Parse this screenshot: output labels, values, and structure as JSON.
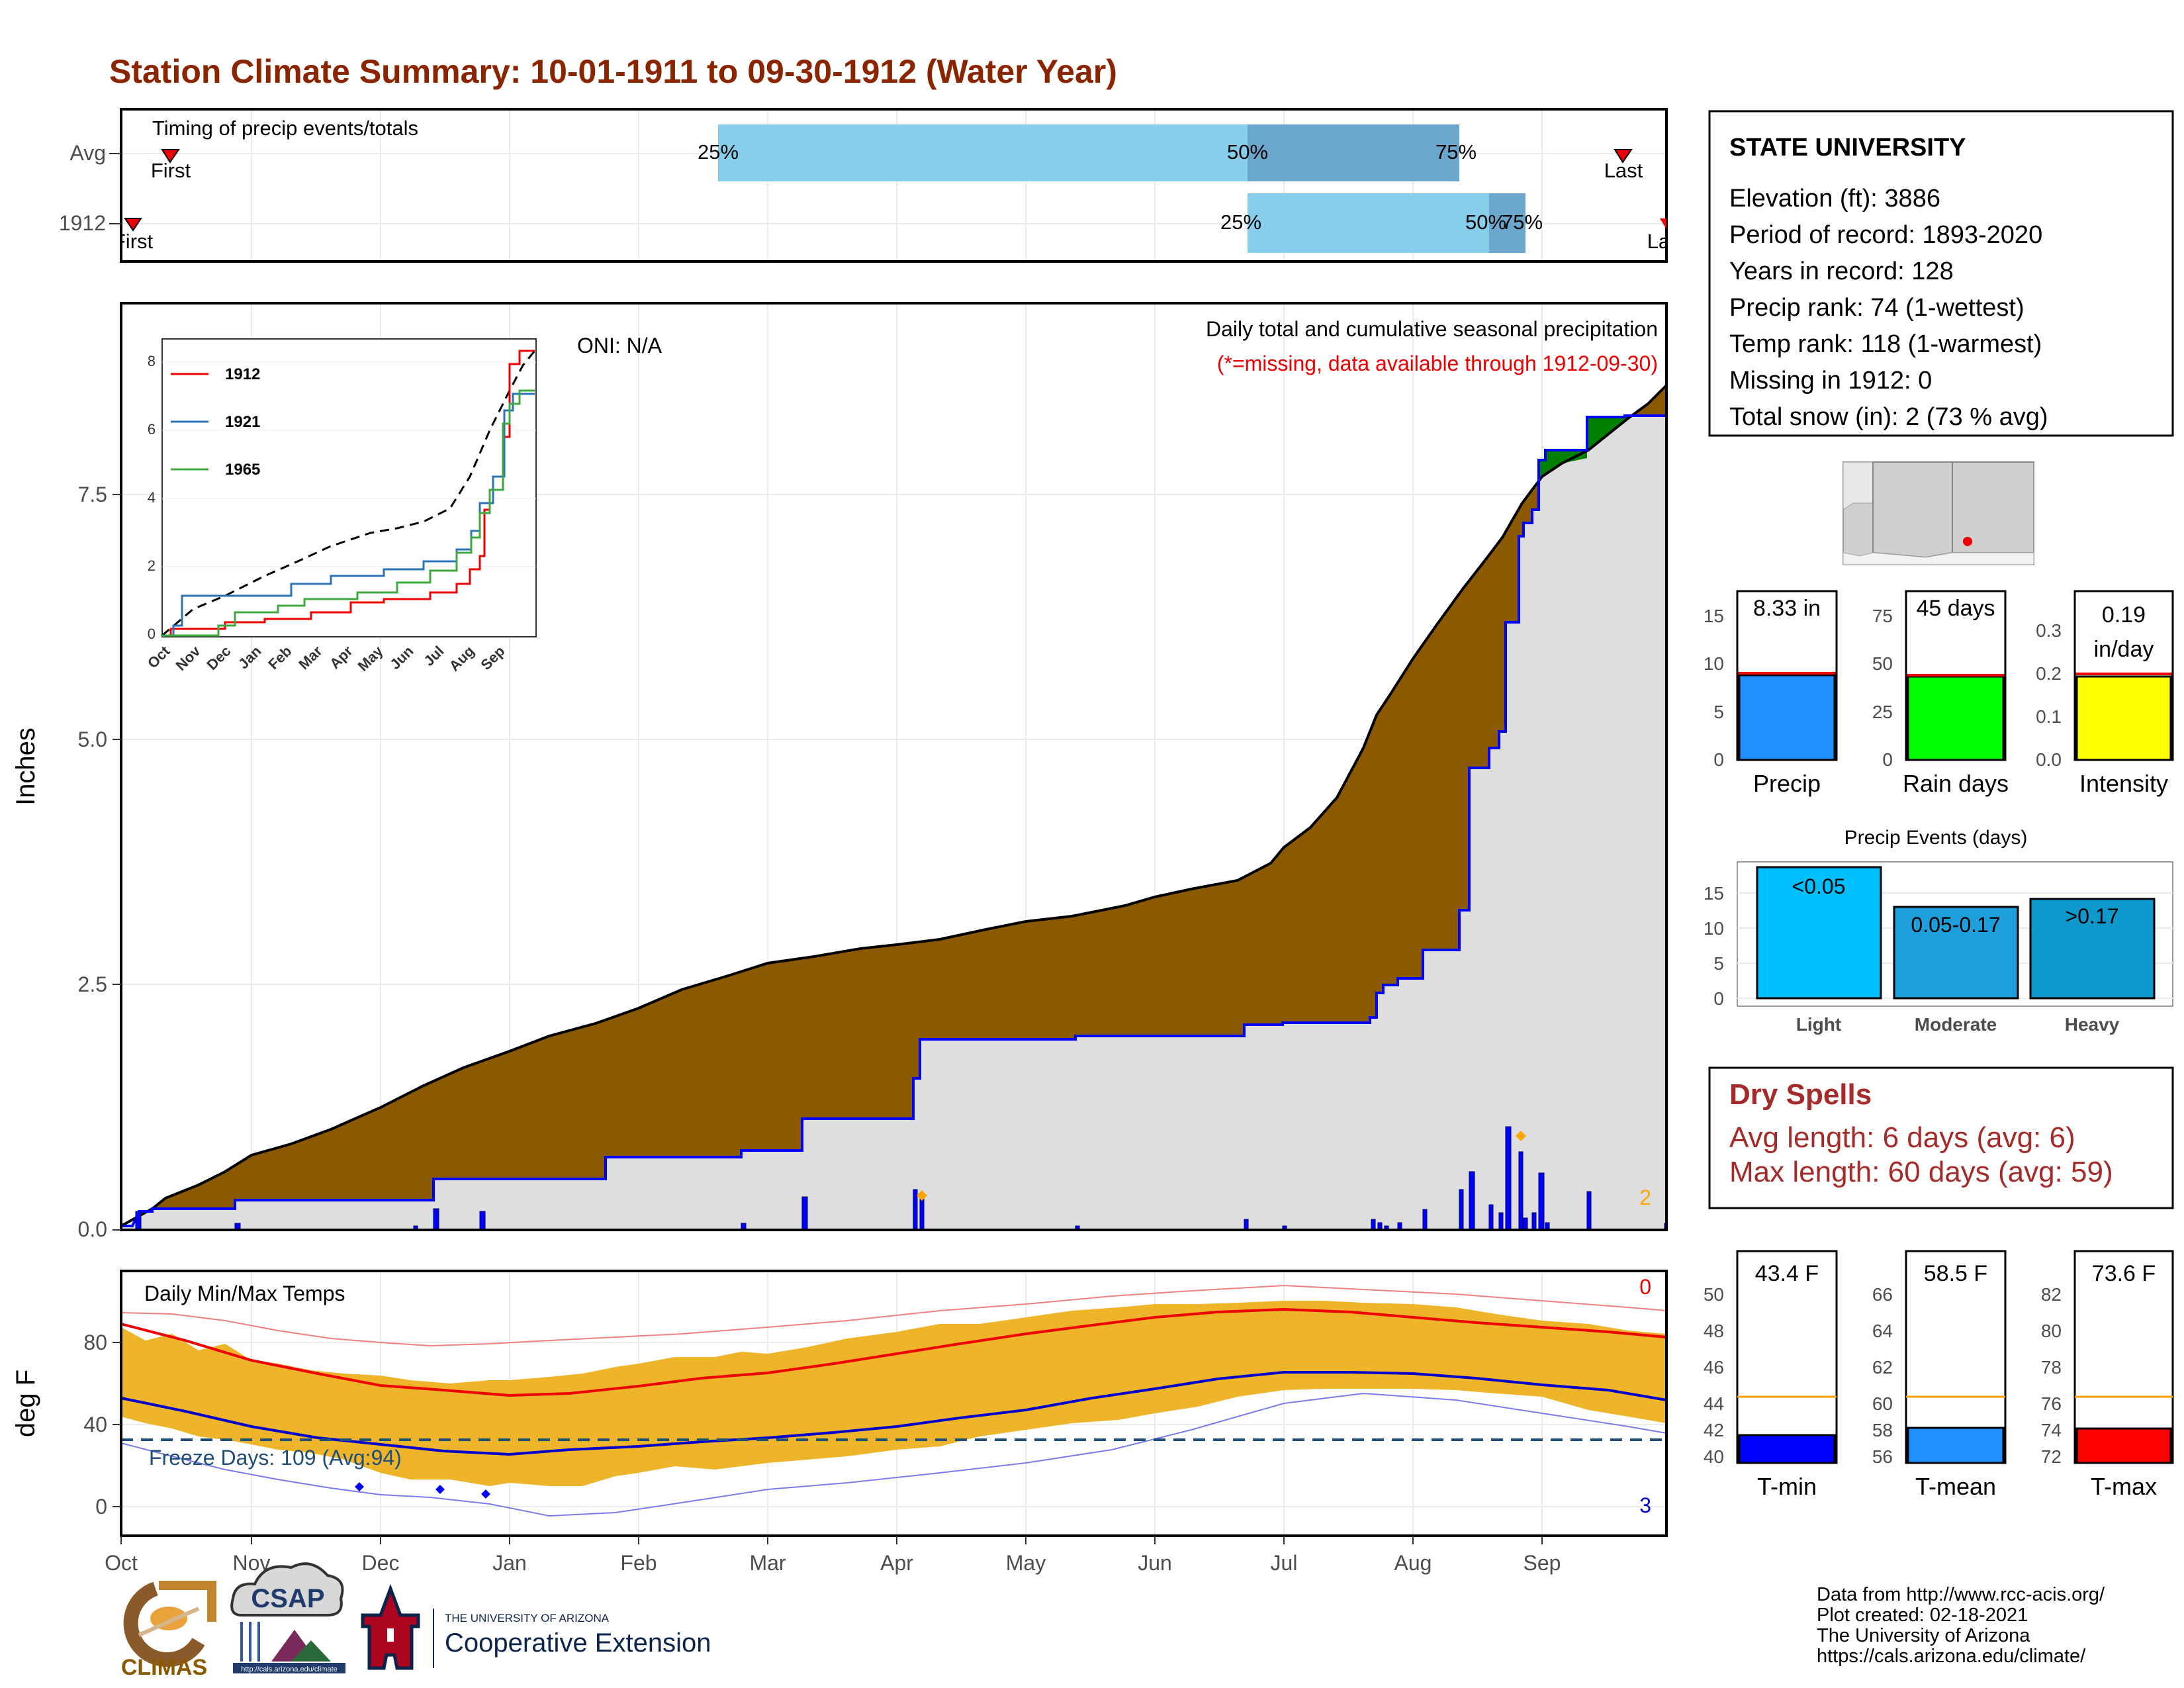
{
  "title": "Station Climate Summary: 10-01-1911 to 09-30-1912 (Water Year)",
  "timing": {
    "label": "Timing of precip events/totals",
    "rows": [
      {
        "name": "Avg",
        "first_label": "First",
        "last_label": "Last",
        "q25": "25%",
        "q50": "50%",
        "q75": "75%"
      },
      {
        "name": "1912",
        "first_label": "First",
        "last_label": "Last",
        "q25": "25%",
        "q50": "50%",
        "q75": "75%"
      }
    ]
  },
  "months": [
    "Oct",
    "Nov",
    "Dec",
    "Jan",
    "Feb",
    "Mar",
    "Apr",
    "May",
    "Jun",
    "Jul",
    "Aug",
    "Sep"
  ],
  "precip_panel": {
    "ylabel": "Inches",
    "yticks": [
      "0.0",
      "2.5",
      "5.0",
      "7.5"
    ],
    "title": "Daily total and cumulative seasonal precipitation",
    "subtitle": "(*=missing, data available through 1912-09-30)",
    "oni": "ONI: N/A",
    "snow_count": "2"
  },
  "inset": {
    "yticks": [
      "0",
      "2",
      "4",
      "6",
      "8"
    ],
    "xticks": [
      "Oct",
      "Nov",
      "Dec",
      "Jan",
      "Feb",
      "Mar",
      "Apr",
      "May",
      "Jun",
      "Jul",
      "Aug",
      "Sep"
    ],
    "legend": [
      "1912",
      "1921",
      "1965"
    ]
  },
  "temp_panel": {
    "ylabel": "deg F",
    "yticks": [
      "0",
      "40",
      "80"
    ],
    "title": "Daily Min/Max Temps",
    "freeze": "Freeze Days: 109 (Avg:94)",
    "max_count": "0",
    "min_count": "3"
  },
  "station": {
    "name": "STATE UNIVERSITY",
    "lines": [
      "Elevation (ft): 3886",
      "Period of record: 1893-2020",
      "Years in record: 128",
      "Precip rank: 74 (1-wettest)",
      "Temp rank: 118 (1-warmest)",
      "Missing in 1912: 0",
      "Total snow (in): 2 (73 % avg)"
    ]
  },
  "summary_bars": {
    "precip": {
      "label": "Precip",
      "value_text": "8.33 in",
      "yticks": [
        "0",
        "5",
        "10",
        "15"
      ]
    },
    "raindays": {
      "label": "Rain days",
      "value_text": "45 days",
      "yticks": [
        "0",
        "25",
        "50",
        "75"
      ]
    },
    "intensity": {
      "label": "Intensity",
      "value_text": "0.19",
      "unit": "in/day",
      "yticks": [
        "0.0",
        "0.1",
        "0.2",
        "0.3"
      ]
    }
  },
  "events": {
    "title": "Precip Events (days)",
    "yticks": [
      "0",
      "5",
      "10",
      "15"
    ],
    "bars": [
      {
        "label": "Light",
        "text": "<0.05"
      },
      {
        "label": "Moderate",
        "text": "0.05-0.17"
      },
      {
        "label": "Heavy",
        "text": ">0.17"
      }
    ]
  },
  "dry_spells": {
    "title": "Dry Spells",
    "avg": "Avg length: 6 days (avg: 6)",
    "max": "Max length: 60 days (avg: 59)"
  },
  "temp_bars": {
    "tmin": {
      "label": "T-min",
      "value_text": "43.4 F",
      "yticks": [
        "40",
        "42",
        "44",
        "46",
        "48",
        "50"
      ]
    },
    "tmean": {
      "label": "T-mean",
      "value_text": "58.5 F",
      "yticks": [
        "56",
        "58",
        "60",
        "62",
        "64",
        "66"
      ]
    },
    "tmax": {
      "label": "T-max",
      "value_text": "73.6 F",
      "yticks": [
        "72",
        "74",
        "76",
        "78",
        "80",
        "82"
      ]
    }
  },
  "footer": {
    "lines": [
      "Data from http://www.rcc-acis.org/",
      "Plot created: 02-18-2021",
      "The University of Arizona",
      "https://cals.arizona.edu/climate/"
    ],
    "climas": "CLIMAS",
    "csap": "CSAP",
    "csap_url": "http://cals.arizona.edu/climate",
    "ua_small": "THE UNIVERSITY OF ARIZONA",
    "ua_big": "Cooperative Extension"
  },
  "colors": {
    "title": "#8B2500",
    "brown": "#8B5A00",
    "blue": "#0000FF",
    "green": "#007F00",
    "light_blue": "#87CEEB",
    "steel_blue": "#6BA6CC",
    "gold": "#EDB120",
    "dry_red": "#A52A2A"
  },
  "chart_data": [
    {
      "type": "area",
      "title": "Daily total and cumulative seasonal precipitation",
      "ylabel": "Inches",
      "ylim": [
        0,
        9.5
      ],
      "x": [
        "Oct",
        "Nov",
        "Dec",
        "Jan",
        "Feb",
        "Mar",
        "Apr",
        "May",
        "Jun",
        "Jul",
        "Aug",
        "Sep",
        "end"
      ],
      "series": [
        {
          "name": "avg cumulative",
          "values": [
            0,
            0.75,
            1.35,
            1.75,
            2.2,
            2.6,
            2.85,
            3.05,
            3.45,
            4.05,
            5.3,
            7.6,
            8.6
          ]
        },
        {
          "name": "1912 cumulative",
          "values": [
            0,
            0.3,
            0.3,
            0.75,
            0.75,
            0.8,
            1.95,
            2.1,
            2.15,
            2.2,
            3.1,
            8.3,
            8.33
          ]
        }
      ]
    },
    {
      "type": "line",
      "ylabel": "deg F",
      "ylim": [
        -5,
        100
      ],
      "x": [
        "Oct",
        "Nov",
        "Dec",
        "Jan",
        "Feb",
        "Mar",
        "Apr",
        "May",
        "Jun",
        "Jul",
        "Aug",
        "Sep",
        "end"
      ],
      "series": [
        {
          "name": "avg max",
          "values": [
            84,
            72,
            62,
            57,
            61,
            67,
            76,
            85,
            93,
            96,
            92,
            89,
            84
          ]
        },
        {
          "name": "avg min",
          "values": [
            53,
            41,
            33,
            29,
            31,
            35,
            41,
            48,
            58,
            66,
            66,
            62,
            52
          ]
        }
      ]
    },
    {
      "type": "bar",
      "categories": [
        "Light",
        "Moderate",
        "Heavy"
      ],
      "values": [
        19,
        13,
        14
      ],
      "title": "Precip Events (days)"
    }
  ]
}
